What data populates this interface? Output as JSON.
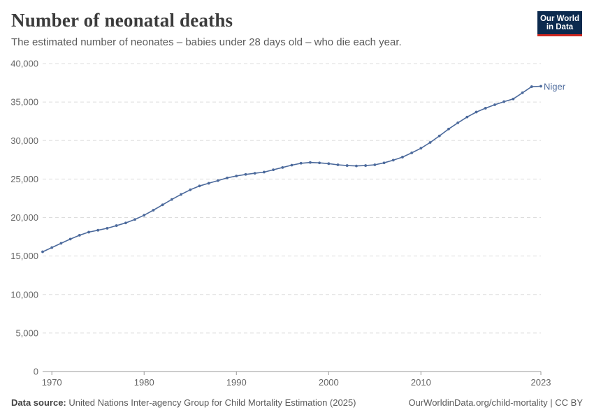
{
  "header": {
    "title": "Number of neonatal deaths",
    "subtitle": "The estimated number of neonates – babies under 28 days old – who die each year."
  },
  "logo": {
    "line1": "Our World",
    "line2": "in Data"
  },
  "footer": {
    "source_label": "Data source:",
    "source_text": "United Nations Inter-agency Group for Child Mortality Estimation (2025)",
    "right_text": "OurWorldinData.org/child-mortality | CC BY"
  },
  "colors": {
    "series": "#4c6a9c",
    "grid": "#dddddd",
    "axis": "#999999"
  },
  "chart_data": {
    "type": "line",
    "title": "Number of neonatal deaths",
    "xlabel": "",
    "ylabel": "",
    "xlim": [
      1969,
      2023
    ],
    "ylim": [
      0,
      40000
    ],
    "y_ticks": [
      0,
      5000,
      10000,
      15000,
      20000,
      25000,
      30000,
      35000,
      40000
    ],
    "y_tick_labels": [
      "0",
      "5,000",
      "10,000",
      "15,000",
      "20,000",
      "25,000",
      "30,000",
      "35,000",
      "40,000"
    ],
    "x_ticks": [
      1970,
      1980,
      1990,
      2000,
      2010,
      2023
    ],
    "x_tick_labels": [
      "1970",
      "1980",
      "1990",
      "2000",
      "2010",
      "2023"
    ],
    "grid": true,
    "series": [
      {
        "name": "Niger",
        "x": [
          1969,
          1970,
          1971,
          1972,
          1973,
          1974,
          1975,
          1976,
          1977,
          1978,
          1979,
          1980,
          1981,
          1982,
          1983,
          1984,
          1985,
          1986,
          1987,
          1988,
          1989,
          1990,
          1991,
          1992,
          1993,
          1994,
          1995,
          1996,
          1997,
          1998,
          1999,
          2000,
          2001,
          2002,
          2003,
          2004,
          2005,
          2006,
          2007,
          2008,
          2009,
          2010,
          2011,
          2012,
          2013,
          2014,
          2015,
          2016,
          2017,
          2018,
          2019,
          2020,
          2021,
          2022,
          2023
        ],
        "values": [
          15550,
          16100,
          16650,
          17200,
          17700,
          18100,
          18350,
          18600,
          18950,
          19300,
          19750,
          20300,
          20950,
          21650,
          22350,
          23000,
          23600,
          24100,
          24450,
          24800,
          25150,
          25400,
          25600,
          25750,
          25900,
          26200,
          26500,
          26800,
          27050,
          27150,
          27100,
          27000,
          26850,
          26750,
          26700,
          26750,
          26850,
          27100,
          27450,
          27850,
          28400,
          29000,
          29750,
          30600,
          31500,
          32300,
          33050,
          33700,
          34200,
          34650,
          35050,
          35400,
          36200,
          37000,
          37050
        ]
      }
    ]
  }
}
